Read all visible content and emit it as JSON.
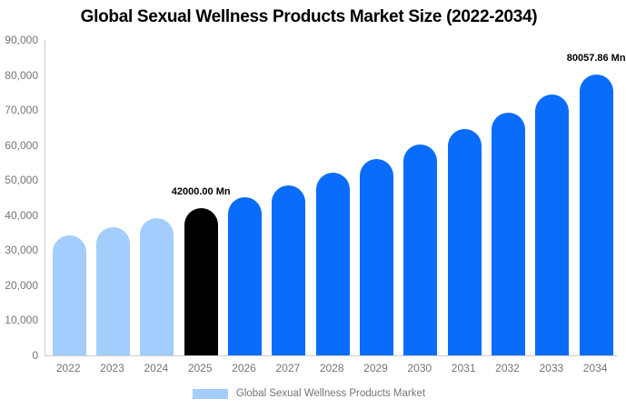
{
  "title": "Global Sexual Wellness Products Market Size (2022-2034)",
  "colors": {
    "historical_bar": "#A3CDFC",
    "base_year_bar": "#000000",
    "forecast_bar": "#0A6CFA",
    "axis_line": "#CCCCCC",
    "axis_text": "#757575",
    "title_text": "#000000",
    "annotation_text": "#000000"
  },
  "chart_data": {
    "type": "bar",
    "title": "Global Sexual Wellness Products Market Size (2022-2034)",
    "unit": "Mn",
    "categories": [
      "2022",
      "2023",
      "2024",
      "2025",
      "2026",
      "2027",
      "2028",
      "2029",
      "2030",
      "2031",
      "2032",
      "2033",
      "2034"
    ],
    "values": [
      34300,
      36700,
      39200,
      42000,
      45121,
      48475,
      52078,
      55949,
      60108,
      64576,
      69376,
      74533,
      80057.86
    ],
    "bar_colors": [
      "#A3CDFC",
      "#A3CDFC",
      "#A3CDFC",
      "#000000",
      "#0A6CFA",
      "#0A6CFA",
      "#0A6CFA",
      "#0A6CFA",
      "#0A6CFA",
      "#0A6CFA",
      "#0A6CFA",
      "#0A6CFA",
      "#0A6CFA"
    ],
    "xlabel": "",
    "ylabel": "",
    "ylim": [
      0,
      90000
    ],
    "ytick_step": 10000,
    "yticks": [
      "90,000",
      "80,000",
      "70,000",
      "60,000",
      "50,000",
      "40,000",
      "30,000",
      "20,000",
      "10,000",
      "0"
    ],
    "grid": false,
    "legend_position": "bottom",
    "annotations": [
      {
        "category": "2025",
        "label": "42000.00 Mn"
      },
      {
        "category": "2034",
        "label": "80057.86 Mn",
        "clipped_at_right_edge": true
      }
    ],
    "legend": [
      {
        "label": "Global Sexual Wellness Products Market",
        "swatch": "#A3CDFC"
      }
    ]
  }
}
